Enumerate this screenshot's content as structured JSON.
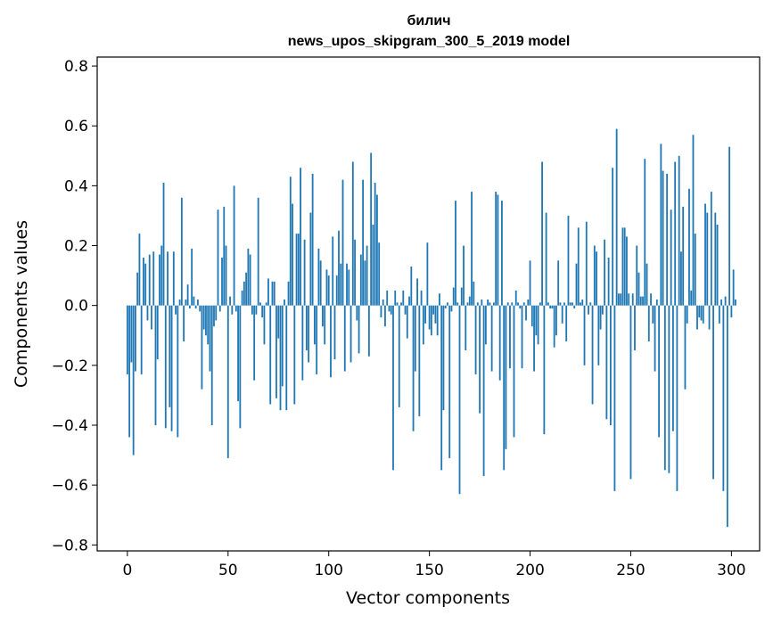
{
  "chart_data": {
    "type": "bar",
    "title": "билич",
    "subtitle": "news_upos_skipgram_300_5_2019 model",
    "xlabel": "Vector components",
    "ylabel": "Components values",
    "xlim": [
      -15,
      314
    ],
    "ylim": [
      -0.82,
      0.83
    ],
    "xticks": [
      0,
      50,
      100,
      150,
      200,
      250,
      300
    ],
    "xtick_labels": [
      "0",
      "50",
      "100",
      "150",
      "200",
      "250",
      "300"
    ],
    "yticks": [
      -0.8,
      -0.6,
      -0.4,
      -0.2,
      0.0,
      0.2,
      0.4,
      0.6,
      0.8
    ],
    "ytick_labels": [
      "−0.8",
      "−0.6",
      "−0.4",
      "−0.2",
      "0.0",
      "0.2",
      "0.4",
      "0.6",
      "0.8"
    ],
    "bar_color": "#1f77b4",
    "grid": false,
    "values": [
      -0.23,
      -0.44,
      -0.19,
      -0.5,
      -0.22,
      0.11,
      0.24,
      -0.23,
      0.16,
      0.14,
      -0.05,
      0.17,
      -0.08,
      0.18,
      -0.4,
      -0.18,
      0.17,
      0.2,
      0.41,
      -0.41,
      0.18,
      -0.34,
      -0.42,
      0.18,
      -0.03,
      -0.44,
      0.02,
      0.36,
      -0.12,
      0.02,
      0.07,
      -0.01,
      0.19,
      0.03,
      -0.01,
      0.02,
      -0.02,
      -0.28,
      -0.08,
      -0.1,
      -0.13,
      -0.22,
      -0.4,
      -0.07,
      -0.05,
      0.32,
      -0.02,
      0.16,
      0.33,
      0.2,
      -0.51,
      0.03,
      -0.03,
      0.4,
      -0.02,
      -0.32,
      -0.41,
      0.05,
      0.08,
      0.11,
      0.19,
      0.17,
      -0.03,
      -0.25,
      -0.03,
      0.36,
      0.01,
      -0.04,
      -0.13,
      0.01,
      0.09,
      -0.33,
      0.08,
      0.08,
      -0.31,
      -0.11,
      -0.35,
      -0.27,
      0.02,
      -0.35,
      0.08,
      0.43,
      0.34,
      -0.33,
      0.24,
      0.24,
      0.46,
      -0.25,
      0.22,
      -0.15,
      -0.19,
      0.31,
      0.44,
      -0.13,
      -0.23,
      0.19,
      0.15,
      -0.07,
      -0.13,
      0.12,
      0.1,
      -0.24,
      0.23,
      -0.18,
      0.1,
      0.25,
      0.14,
      0.42,
      -0.22,
      0.14,
      0.12,
      -0.19,
      0.48,
      0.22,
      -0.05,
      -0.16,
      0.17,
      0.42,
      0.15,
      0.2,
      -0.17,
      0.51,
      0.27,
      0.41,
      0.37,
      0.21,
      -0.04,
      0.02,
      -0.07,
      0.05,
      -0.02,
      -0.03,
      -0.55,
      0.05,
      0.01,
      -0.34,
      0.01,
      0.05,
      -0.03,
      -0.11,
      0.03,
      0.13,
      -0.42,
      -0.22,
      0.09,
      -0.37,
      0.05,
      -0.13,
      -0.06,
      0.21,
      -0.08,
      -0.1,
      -0.03,
      -0.06,
      -0.1,
      0.04,
      -0.55,
      -0.35,
      -0.01,
      0.01,
      -0.51,
      -0.02,
      0.06,
      0.35,
      0.01,
      -0.63,
      0.06,
      0.2,
      -0.15,
      0.01,
      0.03,
      0.38,
      0.08,
      -0.23,
      0.01,
      -0.36,
      0.02,
      -0.57,
      -0.13,
      0.02,
      0.01,
      -0.22,
      0.01,
      0.38,
      0.37,
      -0.25,
      0.35,
      -0.55,
      -0.48,
      0.01,
      -0.21,
      0.01,
      -0.44,
      0.05,
      0.01,
      -0.01,
      -0.21,
      0.01,
      -0.05,
      0.02,
      0.15,
      -0.07,
      -0.22,
      -0.1,
      -0.13,
      0.01,
      0.48,
      -0.43,
      0.31,
      0.01,
      -0.01,
      -0.01,
      -0.14,
      -0.1,
      0.15,
      0.01,
      -0.06,
      0.01,
      -0.12,
      0.3,
      0.01,
      0.01,
      -0.01,
      0.14,
      0.26,
      0.01,
      0.02,
      -0.2,
      0.28,
      -0.03,
      0.01,
      -0.33,
      0.2,
      0.18,
      -0.2,
      -0.08,
      -0.03,
      0.22,
      -0.38,
      0.16,
      -0.4,
      0.46,
      -0.62,
      0.59,
      0.04,
      0.04,
      0.26,
      0.26,
      0.23,
      0.04,
      -0.58,
      0.04,
      -0.15,
      0.2,
      0.11,
      0.03,
      0.03,
      0.49,
      0.14,
      -0.12,
      0.04,
      -0.06,
      -0.22,
      0.02,
      -0.44,
      0.54,
      0.45,
      -0.55,
      0.44,
      -0.56,
      0.32,
      -0.42,
      0.48,
      -0.62,
      0.5,
      0.18,
      0.33,
      -0.28,
      -0.06,
      0.39,
      0.05,
      0.57,
      0.24,
      -0.08,
      -0.04,
      -0.05,
      -0.06,
      0.34,
      0.31,
      -0.08,
      0.38,
      -0.58,
      0.31,
      0.27,
      -0.06,
      0.02,
      -0.62,
      0.03,
      -0.74,
      0.53,
      -0.04,
      0.12,
      0.02
    ]
  }
}
